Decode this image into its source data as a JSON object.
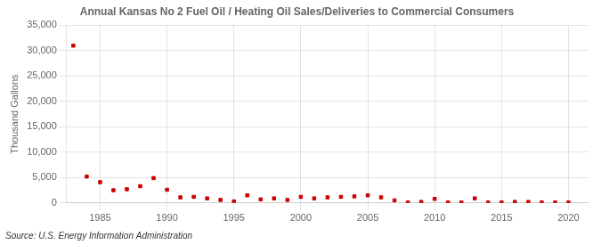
{
  "chart_data": {
    "type": "scatter",
    "title": "Annual Kansas No 2 Fuel Oil / Heating Oil Sales/Deliveries to Commercial Consumers",
    "ylabel": "Thousand Gallons",
    "source": "Source: U.S. Energy Information Administration",
    "x": [
      1983,
      1984,
      1985,
      1986,
      1987,
      1988,
      1989,
      1990,
      1991,
      1992,
      1993,
      1994,
      1995,
      1996,
      1997,
      1998,
      1999,
      2000,
      2001,
      2002,
      2003,
      2004,
      2005,
      2006,
      2007,
      2008,
      2009,
      2010,
      2011,
      2012,
      2013,
      2014,
      2015,
      2016,
      2017,
      2018,
      2019,
      2020
    ],
    "values": [
      31000,
      5200,
      4100,
      2500,
      2700,
      3300,
      4900,
      2600,
      1100,
      1200,
      900,
      600,
      300,
      1500,
      700,
      900,
      600,
      1200,
      900,
      1100,
      1200,
      1300,
      1500,
      1100,
      500,
      100,
      200,
      800,
      100,
      100,
      900,
      100,
      100,
      200,
      200,
      100,
      100,
      100
    ],
    "color": "#cc0000",
    "marker": "square",
    "xlim": [
      1982.5,
      2021.5
    ],
    "xticks": [
      1985,
      1990,
      1995,
      2000,
      2005,
      2010,
      2015,
      2020
    ],
    "ylim": [
      0,
      35000
    ],
    "yticks": [
      0,
      {
        "value": 5000,
        "label": "5,000"
      },
      {
        "value": 10000,
        "label": "10,000"
      },
      {
        "value": 15000,
        "label": "15,000"
      },
      {
        "value": 20000,
        "label": "20,000"
      },
      {
        "value": 25000,
        "label": "25,000"
      },
      {
        "value": 30000,
        "label": "30,000"
      },
      {
        "value": 35000,
        "label": "35,000"
      }
    ],
    "grid": true
  }
}
